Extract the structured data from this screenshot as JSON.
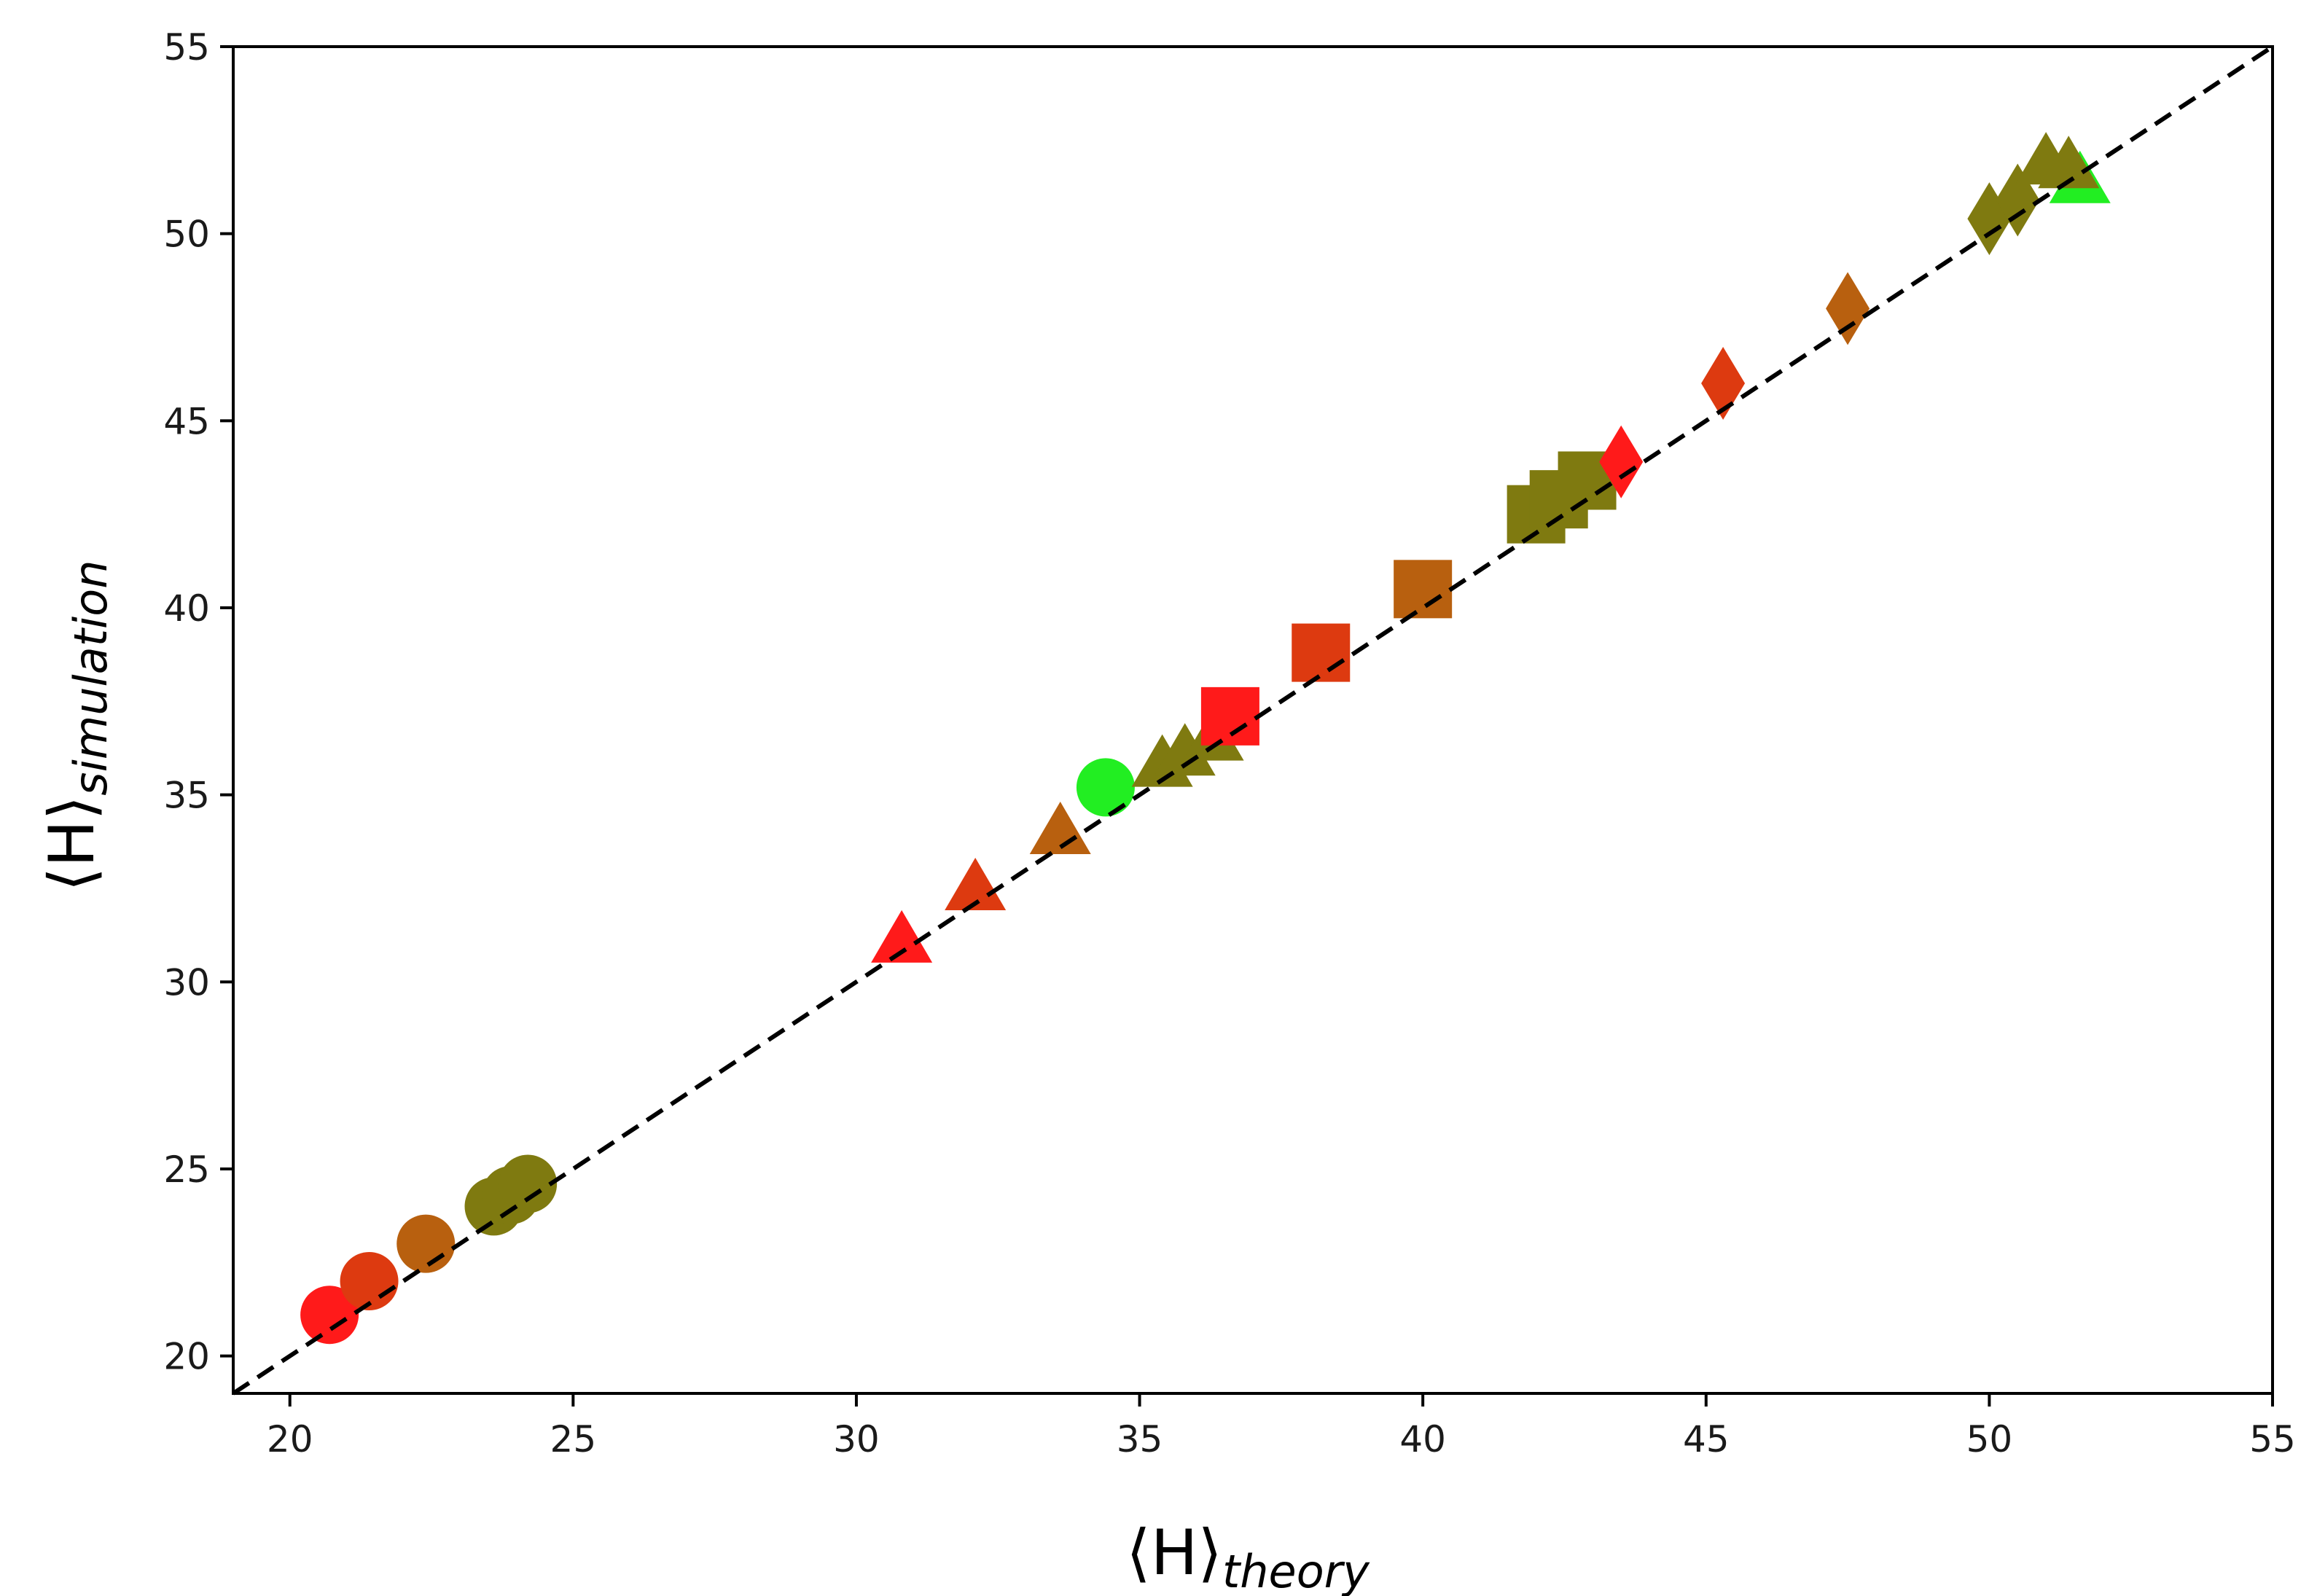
{
  "chart_data": {
    "type": "scatter",
    "title": "",
    "xlabel": {
      "main": "⟨H⟩",
      "sub": "theory"
    },
    "ylabel": {
      "main": "⟨H⟩",
      "sub": "simulation"
    },
    "xlim": [
      19,
      55
    ],
    "ylim": [
      19,
      55
    ],
    "xticks": [
      20,
      25,
      30,
      35,
      40,
      45,
      50,
      55
    ],
    "yticks": [
      20,
      25,
      30,
      35,
      40,
      45,
      50,
      55
    ],
    "grid": false,
    "legend": "none",
    "reference_line": {
      "x": [
        19,
        55
      ],
      "y": [
        19,
        55
      ],
      "style": "dashed",
      "color": "#000000"
    },
    "points": [
      {
        "x": 20.7,
        "y": 21.1,
        "marker": "circle",
        "color": "#ff1a1a"
      },
      {
        "x": 21.4,
        "y": 22.0,
        "marker": "circle",
        "color": "#dd3a10"
      },
      {
        "x": 22.4,
        "y": 23.0,
        "marker": "circle",
        "color": "#b8600f"
      },
      {
        "x": 23.6,
        "y": 24.0,
        "marker": "circle",
        "color": "#7f7a10"
      },
      {
        "x": 23.9,
        "y": 24.3,
        "marker": "circle",
        "color": "#7f7a10"
      },
      {
        "x": 24.2,
        "y": 24.6,
        "marker": "circle",
        "color": "#7f7a10"
      },
      {
        "x": 30.8,
        "y": 31.1,
        "marker": "triangle",
        "color": "#ff1a1a"
      },
      {
        "x": 32.1,
        "y": 32.5,
        "marker": "triangle",
        "color": "#dd3a10"
      },
      {
        "x": 33.6,
        "y": 34.0,
        "marker": "triangle",
        "color": "#b8600f"
      },
      {
        "x": 34.4,
        "y": 35.2,
        "marker": "circle",
        "color": "#22ee22"
      },
      {
        "x": 35.4,
        "y": 35.8,
        "marker": "triangle",
        "color": "#7f7a10"
      },
      {
        "x": 35.8,
        "y": 36.1,
        "marker": "triangle",
        "color": "#7f7a10"
      },
      {
        "x": 36.3,
        "y": 36.5,
        "marker": "triangle",
        "color": "#7f7a10"
      },
      {
        "x": 36.6,
        "y": 37.1,
        "marker": "square",
        "color": "#ff1a1a"
      },
      {
        "x": 38.2,
        "y": 38.8,
        "marker": "square",
        "color": "#dd3a10"
      },
      {
        "x": 40.0,
        "y": 40.5,
        "marker": "square",
        "color": "#b8600f"
      },
      {
        "x": 42.0,
        "y": 42.5,
        "marker": "square",
        "color": "#7f7a10"
      },
      {
        "x": 42.4,
        "y": 42.9,
        "marker": "square",
        "color": "#7f7a10"
      },
      {
        "x": 42.9,
        "y": 43.4,
        "marker": "square",
        "color": "#7f7a10"
      },
      {
        "x": 43.5,
        "y": 43.9,
        "marker": "diamond",
        "color": "#ff1a1a"
      },
      {
        "x": 45.3,
        "y": 46.0,
        "marker": "diamond",
        "color": "#dd3a10"
      },
      {
        "x": 47.5,
        "y": 48.0,
        "marker": "diamond",
        "color": "#b8600f"
      },
      {
        "x": 50.0,
        "y": 50.4,
        "marker": "diamond",
        "color": "#7f7a10"
      },
      {
        "x": 50.5,
        "y": 50.9,
        "marker": "diamond",
        "color": "#7f7a10"
      },
      {
        "x": 51.6,
        "y": 51.4,
        "marker": "triangle",
        "color": "#22ee22"
      },
      {
        "x": 51.0,
        "y": 51.9,
        "marker": "triangle",
        "color": "#7f7a10"
      },
      {
        "x": 51.4,
        "y": 51.8,
        "marker": "triangle",
        "color": "#7f7a10"
      }
    ]
  }
}
